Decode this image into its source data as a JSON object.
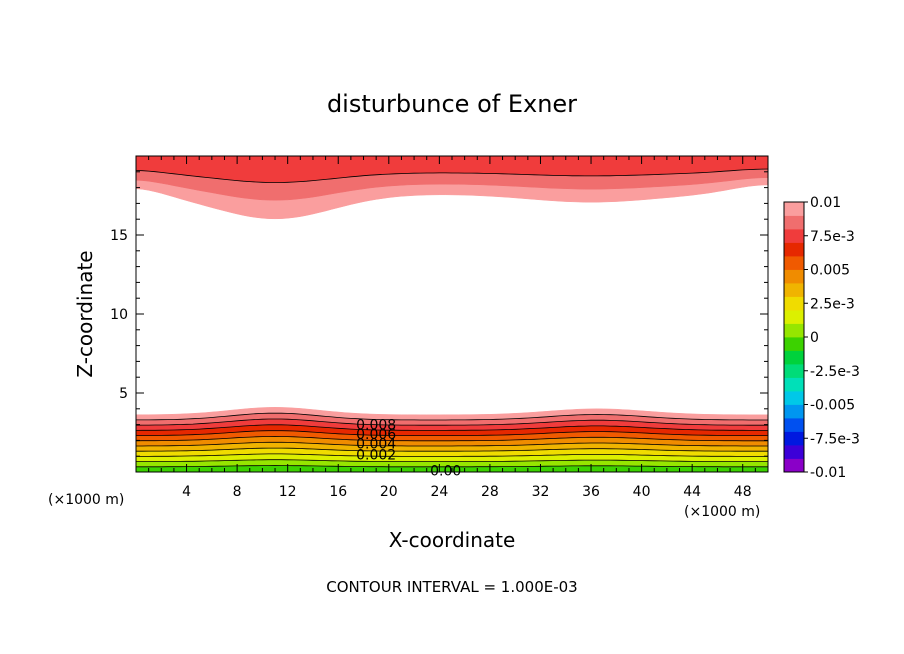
{
  "chart_data": {
    "type": "contour",
    "title": "disturbunce of Exner",
    "xlabel": "X-coordinate",
    "ylabel": "Z-coordinate",
    "x_unit": "(×1000 m)",
    "z_unit": "(×1000 m)",
    "xlim": [
      0,
      50
    ],
    "ylim": [
      0,
      20
    ],
    "x_ticks": [
      4,
      8,
      12,
      16,
      20,
      24,
      28,
      32,
      36,
      40,
      44,
      48
    ],
    "y_ticks": [
      5,
      10,
      15
    ],
    "footer": "CONTOUR INTERVAL = 1.000E-03",
    "colorbar": {
      "range": [
        -0.01,
        0.01
      ],
      "tick_labels": [
        "0.01",
        "7.5e-3",
        "0.005",
        "2.5e-3",
        "0",
        "-2.5e-3",
        "-0.005",
        "-7.5e-3",
        "-0.01"
      ],
      "tick_values": [
        0.01,
        0.0075,
        0.005,
        0.0025,
        0,
        -0.0025,
        -0.005,
        -0.0075,
        -0.01
      ],
      "colors_bottom_to_top": [
        "#8a00c8",
        "#3c00d8",
        "#0018e0",
        "#0050f0",
        "#0096f0",
        "#00c8e8",
        "#00e0b8",
        "#00dc78",
        "#00d23c",
        "#3cd200",
        "#96e600",
        "#dcf000",
        "#f0dc00",
        "#f0b400",
        "#f08c00",
        "#f05a00",
        "#e62800",
        "#f03c3c",
        "#f06e6e",
        "#fa9e9e"
      ]
    },
    "bottom_band_colors": [
      "#3cd200",
      "#96e600",
      "#dcf000",
      "#f0dc00",
      "#f0b400",
      "#f08c00",
      "#f05a00",
      "#e62800",
      "#f03c3c",
      "#f06e6e",
      "#fa9e9e"
    ],
    "top_band_colors": [
      "#fa9e9e",
      "#f06e6e",
      "#f03c3c"
    ],
    "contour_labels": [
      {
        "text": "0.008",
        "x": 19.0,
        "z": 3.0
      },
      {
        "text": "0.006",
        "x": 19.0,
        "z": 2.4
      },
      {
        "text": "0.004",
        "x": 19.0,
        "z": 1.8
      },
      {
        "text": "0.002",
        "x": 19.0,
        "z": 1.1
      },
      {
        "text": "0.00",
        "x": 24.5,
        "z": 0.1
      }
    ]
  }
}
